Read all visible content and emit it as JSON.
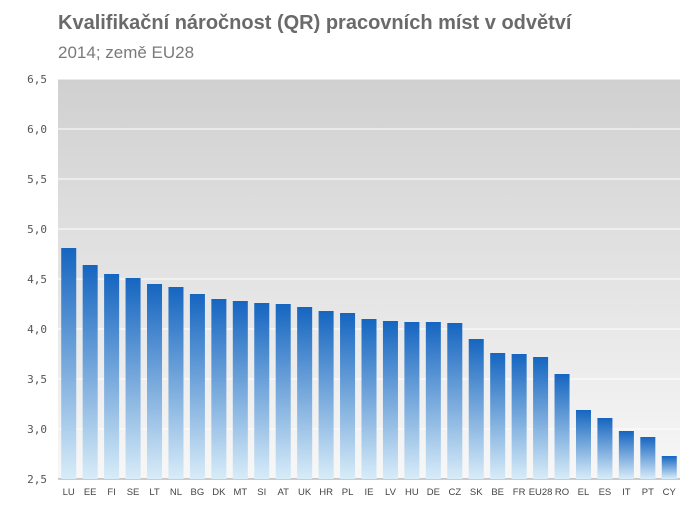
{
  "title": "Kvalifikační náročnost (QR) pracovních míst v odvětví",
  "subtitle": "2014; země EU28",
  "chart_data": {
    "type": "bar",
    "categories": [
      "LU",
      "EE",
      "FI",
      "SE",
      "LT",
      "NL",
      "BG",
      "DK",
      "MT",
      "SI",
      "AT",
      "UK",
      "HR",
      "PL",
      "IE",
      "LV",
      "HU",
      "DE",
      "CZ",
      "SK",
      "BE",
      "FR",
      "EU28",
      "RO",
      "EL",
      "ES",
      "IT",
      "PT",
      "CY"
    ],
    "values": [
      4.81,
      4.64,
      4.55,
      4.51,
      4.45,
      4.42,
      4.35,
      4.3,
      4.28,
      4.26,
      4.25,
      4.22,
      4.18,
      4.16,
      4.1,
      4.08,
      4.07,
      4.07,
      4.06,
      3.9,
      3.76,
      3.75,
      3.72,
      3.55,
      3.19,
      3.11,
      2.98,
      2.92,
      2.73
    ],
    "ylim": [
      2.5,
      6.5
    ],
    "yticks": [
      "2,5",
      "3,0",
      "3,5",
      "4,0",
      "4,5",
      "5,0",
      "5,5",
      "6,0",
      "6,5"
    ],
    "grid": true,
    "bar_color_top": "#1565c0",
    "bar_color_bottom": "#d8ecf8",
    "plot_background_top": "#d0d0d0",
    "plot_background_bottom": "#f7f7f7"
  }
}
